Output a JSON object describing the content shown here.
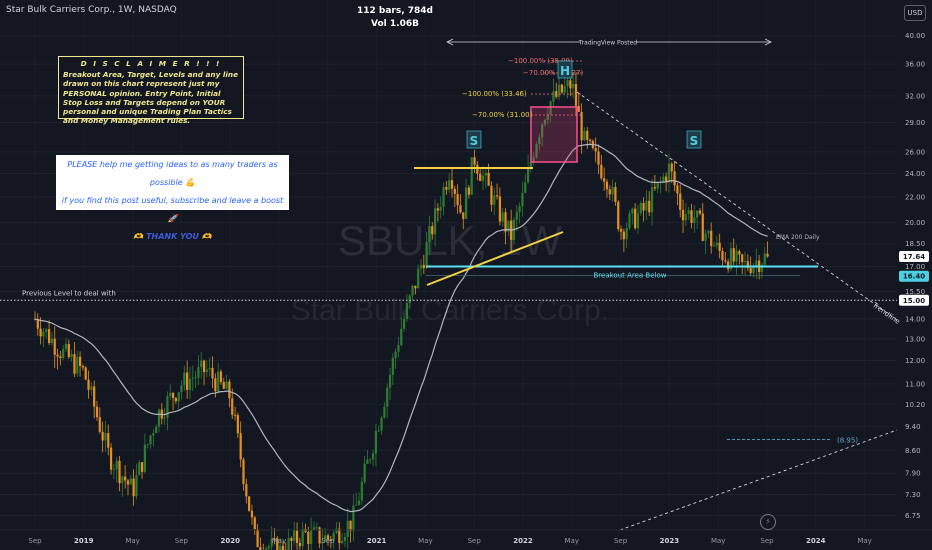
{
  "header": {
    "symbol_title": "Star Bulk Carriers Corp., 1W, NASDAQ",
    "bars_line": "112 bars, 784d",
    "vol_line": "Vol 1.06B",
    "currency": "USD"
  },
  "watermark": {
    "ticker": "SBULK, 1W",
    "name": "Star Bulk Carriers Corp."
  },
  "disclaimer": {
    "heading": "D I S C L A I M E R   ! ! !",
    "body": "Breakout Area, Target, Levels and any line drawn on this chart represent just my PERSONAL opinion. Entry Point, Initial Stop Loss and Targets depend on YOUR personal and unique Trading Plan Tactics and Money Management rules."
  },
  "help_box": {
    "line1": "PLEASE help me getting ideas to as many traders as possible 💪",
    "line2": "if you find this post useful, subscribe and leave a boost 🚀",
    "line3": "🫶 THANK YOU 🫶"
  },
  "colors": {
    "background": "#131722",
    "up_candle": "#2e7d32",
    "down_candle": "#e8901f",
    "ema_line": "#b2b5be",
    "neckline": "#f5d142",
    "breakout_line": "#5ee0f0",
    "breakout_box": "#ff4d8d",
    "fib_text": "#f07070",
    "pattern_label": "#4dd0e1"
  },
  "chart_data": {
    "type": "candlestick",
    "x_tick_labels": [
      "Sep",
      "2019",
      "May",
      "Sep",
      "2020",
      "May",
      "Sep",
      "2021",
      "May",
      "Sep",
      "2022",
      "May",
      "Sep",
      "2023",
      "May",
      "Sep",
      "2024",
      "May"
    ],
    "y_tick_labels": [
      "40.00",
      "36.00",
      "32.00",
      "29.00",
      "26.00",
      "24.00",
      "22.00",
      "20.00",
      "18.50",
      "17.00",
      "15.50",
      "14.00",
      "13.00",
      "12.00",
      "11.00",
      "10.20",
      "9.40",
      "8.60",
      "7.90",
      "7.30",
      "6.75"
    ],
    "y_scale": "log",
    "y_range": [
      6.4,
      44
    ],
    "price_path_waypoints": [
      [
        "Sep 2018",
        14.0
      ],
      [
        "Nov 2018",
        12.5
      ],
      [
        "2019",
        11.5
      ],
      [
        "Mar 2019",
        8.5
      ],
      [
        "May 2019",
        7.4
      ],
      [
        "Jul 2019",
        9.8
      ],
      [
        "Sep 2019",
        11.0
      ],
      [
        "Nov 2019",
        11.6
      ],
      [
        "2020",
        10.5
      ],
      [
        "Mar 2020",
        6.2
      ],
      [
        "May 2020",
        5.9
      ],
      [
        "Jul 2020",
        6.3
      ],
      [
        "Sep 2020",
        6.2
      ],
      [
        "Nov 2020",
        6.6
      ],
      [
        "2021",
        9.3
      ],
      [
        "Mar 2021",
        13.5
      ],
      [
        "May 2021",
        18.0
      ],
      [
        "Jul 2021",
        24.5
      ],
      [
        "Aug 2021",
        20.5
      ],
      [
        "Sep 2021",
        25.5
      ],
      [
        "Oct 2021",
        23.0
      ],
      [
        "Dec 2021",
        19.0
      ],
      [
        "2022",
        22.0
      ],
      [
        "Feb 2022",
        27.0
      ],
      [
        "Mar 2022",
        31.0
      ],
      [
        "May 2022",
        33.5
      ],
      [
        "Jun 2022",
        27.0
      ],
      [
        "Aug 2022",
        23.5
      ],
      [
        "Sep 2022",
        19.5
      ],
      [
        "Nov 2022",
        21.0
      ],
      [
        "2023",
        24.5
      ],
      [
        "Feb 2023",
        21.0
      ],
      [
        "Mar 2023",
        20.5
      ],
      [
        "May 2023",
        18.0
      ],
      [
        "Jul 2023",
        17.0
      ],
      [
        "Sep 2023",
        17.64
      ]
    ],
    "indicators": [
      {
        "name": "EMA 200 Daily"
      }
    ],
    "levels": [
      {
        "label": "Previous Level to deal with",
        "value": 15.0
      },
      {
        "label": "Breakout Area Below",
        "value": 17.0
      },
      {
        "label": "(8.95)",
        "value": 8.95
      }
    ],
    "fib_labels": [
      "−100.00% (38.09)",
      "−70.00% (36.27)",
      "−100.00% (33.46)",
      "−70.00% (31.00)"
    ],
    "pattern_labels": [
      "S",
      "H",
      "S"
    ],
    "trendline_labels": [
      "Trendline"
    ],
    "drawing_labels": [
      "TradingView Posted"
    ],
    "price_tags": [
      {
        "value": "17.64",
        "color": "#ffffff"
      },
      {
        "value": "16.40",
        "color": "#4dd0e1"
      },
      {
        "value": "15.00",
        "color": "#ffffff"
      }
    ]
  }
}
